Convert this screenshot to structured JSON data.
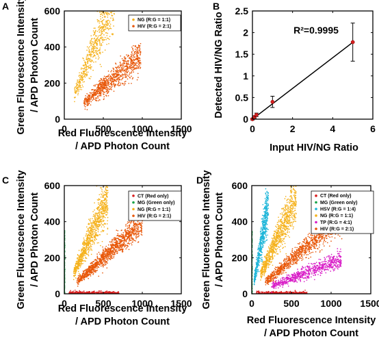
{
  "chart_data": [
    {
      "panel": "A",
      "type": "scatter",
      "xlabel": "Red Fluorescence Intensity / APD Photon Count",
      "ylabel": "Green Fluorescence Intensity / APD Photon Count",
      "xlim": [
        0,
        1500
      ],
      "ylim": [
        0,
        600
      ],
      "xticks": [
        0,
        500,
        1000,
        1500
      ],
      "yticks": [
        0,
        200,
        400,
        600
      ],
      "legend_position": "top-right",
      "series": [
        {
          "name": "NG (R:G = 1:1)",
          "color": "#f5b21d",
          "cluster": {
            "ratio": 1.05,
            "xmin": 130,
            "xmax": 650,
            "spread": 0.13,
            "count": 650
          }
        },
        {
          "name": "HIV (R:G = 2:1)",
          "color": "#e8580a",
          "cluster": {
            "ratio": 0.36,
            "xmin": 250,
            "xmax": 980,
            "spread": 0.13,
            "count": 900
          }
        }
      ]
    },
    {
      "panel": "B",
      "type": "line",
      "xlabel": "Input HIV/NG Ratio",
      "ylabel": "Detected HIV/NG Ratio",
      "xlim": [
        0,
        6
      ],
      "ylim": [
        0,
        2.5
      ],
      "xticks": [
        0,
        2,
        4,
        6
      ],
      "yticks": [
        0,
        0.5,
        1,
        1.5,
        2,
        2.5
      ],
      "annotation": "R²=0.9995",
      "points": [
        {
          "x": 0,
          "y": 0,
          "err": 0.02
        },
        {
          "x": 0.1,
          "y": 0.05,
          "err": 0.03
        },
        {
          "x": 0.2,
          "y": 0.1,
          "err": 0.04
        },
        {
          "x": 1,
          "y": 0.4,
          "err": 0.13
        },
        {
          "x": 5,
          "y": 1.78,
          "err": 0.44
        }
      ],
      "fit": {
        "slope": 0.355,
        "intercept": 0.0
      }
    },
    {
      "panel": "C",
      "type": "scatter",
      "xlabel": "Red Fluorescence Intensity / APD Photon Count",
      "ylabel": "Green Fluorescence Intensity / APD Photon Count",
      "xlim": [
        0,
        1500
      ],
      "ylim": [
        0,
        600
      ],
      "xticks": [
        0,
        500,
        1000,
        1500
      ],
      "yticks": [
        0,
        200,
        400,
        600
      ],
      "legend_position": "top-right",
      "series": [
        {
          "name": "CT (Red only)",
          "color": "#d81e1e",
          "cluster": {
            "ratio": 0.01,
            "xmin": 60,
            "xmax": 700,
            "spread": 0.5,
            "count": 350
          }
        },
        {
          "name": "MG (Green only)",
          "color": "#16a348",
          "cluster": {
            "ratio": 40,
            "xmin": 0,
            "xmax": 8,
            "spread": 0.3,
            "count": 200
          }
        },
        {
          "name": "NG (R:G = 1:1)",
          "color": "#f5b21d",
          "cluster": {
            "ratio": 0.95,
            "xmin": 120,
            "xmax": 560,
            "spread": 0.13,
            "count": 900
          }
        },
        {
          "name": "HIV (R:G = 2:1)",
          "color": "#e8580a",
          "cluster": {
            "ratio": 0.4,
            "xmin": 160,
            "xmax": 1000,
            "spread": 0.1,
            "count": 1200
          }
        }
      ]
    },
    {
      "panel": "D",
      "type": "scatter",
      "xlabel": "Red Fluorescence Intensity / APD Photon Count",
      "ylabel": "Green Fluorescence Intensity / APD Photon Count",
      "xlim": [
        0,
        1500
      ],
      "ylim": [
        0,
        600
      ],
      "xticks": [
        0,
        500,
        1000,
        1500
      ],
      "yticks": [
        0,
        200,
        400,
        600
      ],
      "legend_position": "top-right",
      "series": [
        {
          "name": "CT (Red only)",
          "color": "#d81e1e",
          "cluster": {
            "ratio": 0.01,
            "xmin": 60,
            "xmax": 700,
            "spread": 0.5,
            "count": 300
          }
        },
        {
          "name": "MG (Green only)",
          "color": "#16a348",
          "cluster": {
            "ratio": 40,
            "xmin": 0,
            "xmax": 8,
            "spread": 0.3,
            "count": 200
          }
        },
        {
          "name": "HSV (R:G = 1:4)",
          "color": "#1fb6d9",
          "cluster": {
            "ratio": 2.4,
            "xmin": 30,
            "xmax": 210,
            "spread": 0.15,
            "count": 600
          }
        },
        {
          "name": "NG (R:G = 1:1)",
          "color": "#f5b21d",
          "cluster": {
            "ratio": 0.95,
            "xmin": 110,
            "xmax": 560,
            "spread": 0.13,
            "count": 900
          }
        },
        {
          "name": "TP (R:G = 4:1)",
          "color": "#d81bc6",
          "cluster": {
            "ratio": 0.17,
            "xmin": 250,
            "xmax": 1130,
            "spread": 0.13,
            "count": 700
          }
        },
        {
          "name": "HIV (R:G = 2:1)",
          "color": "#e8580a",
          "cluster": {
            "ratio": 0.38,
            "xmin": 170,
            "xmax": 1200,
            "spread": 0.1,
            "count": 1200
          }
        }
      ]
    }
  ]
}
